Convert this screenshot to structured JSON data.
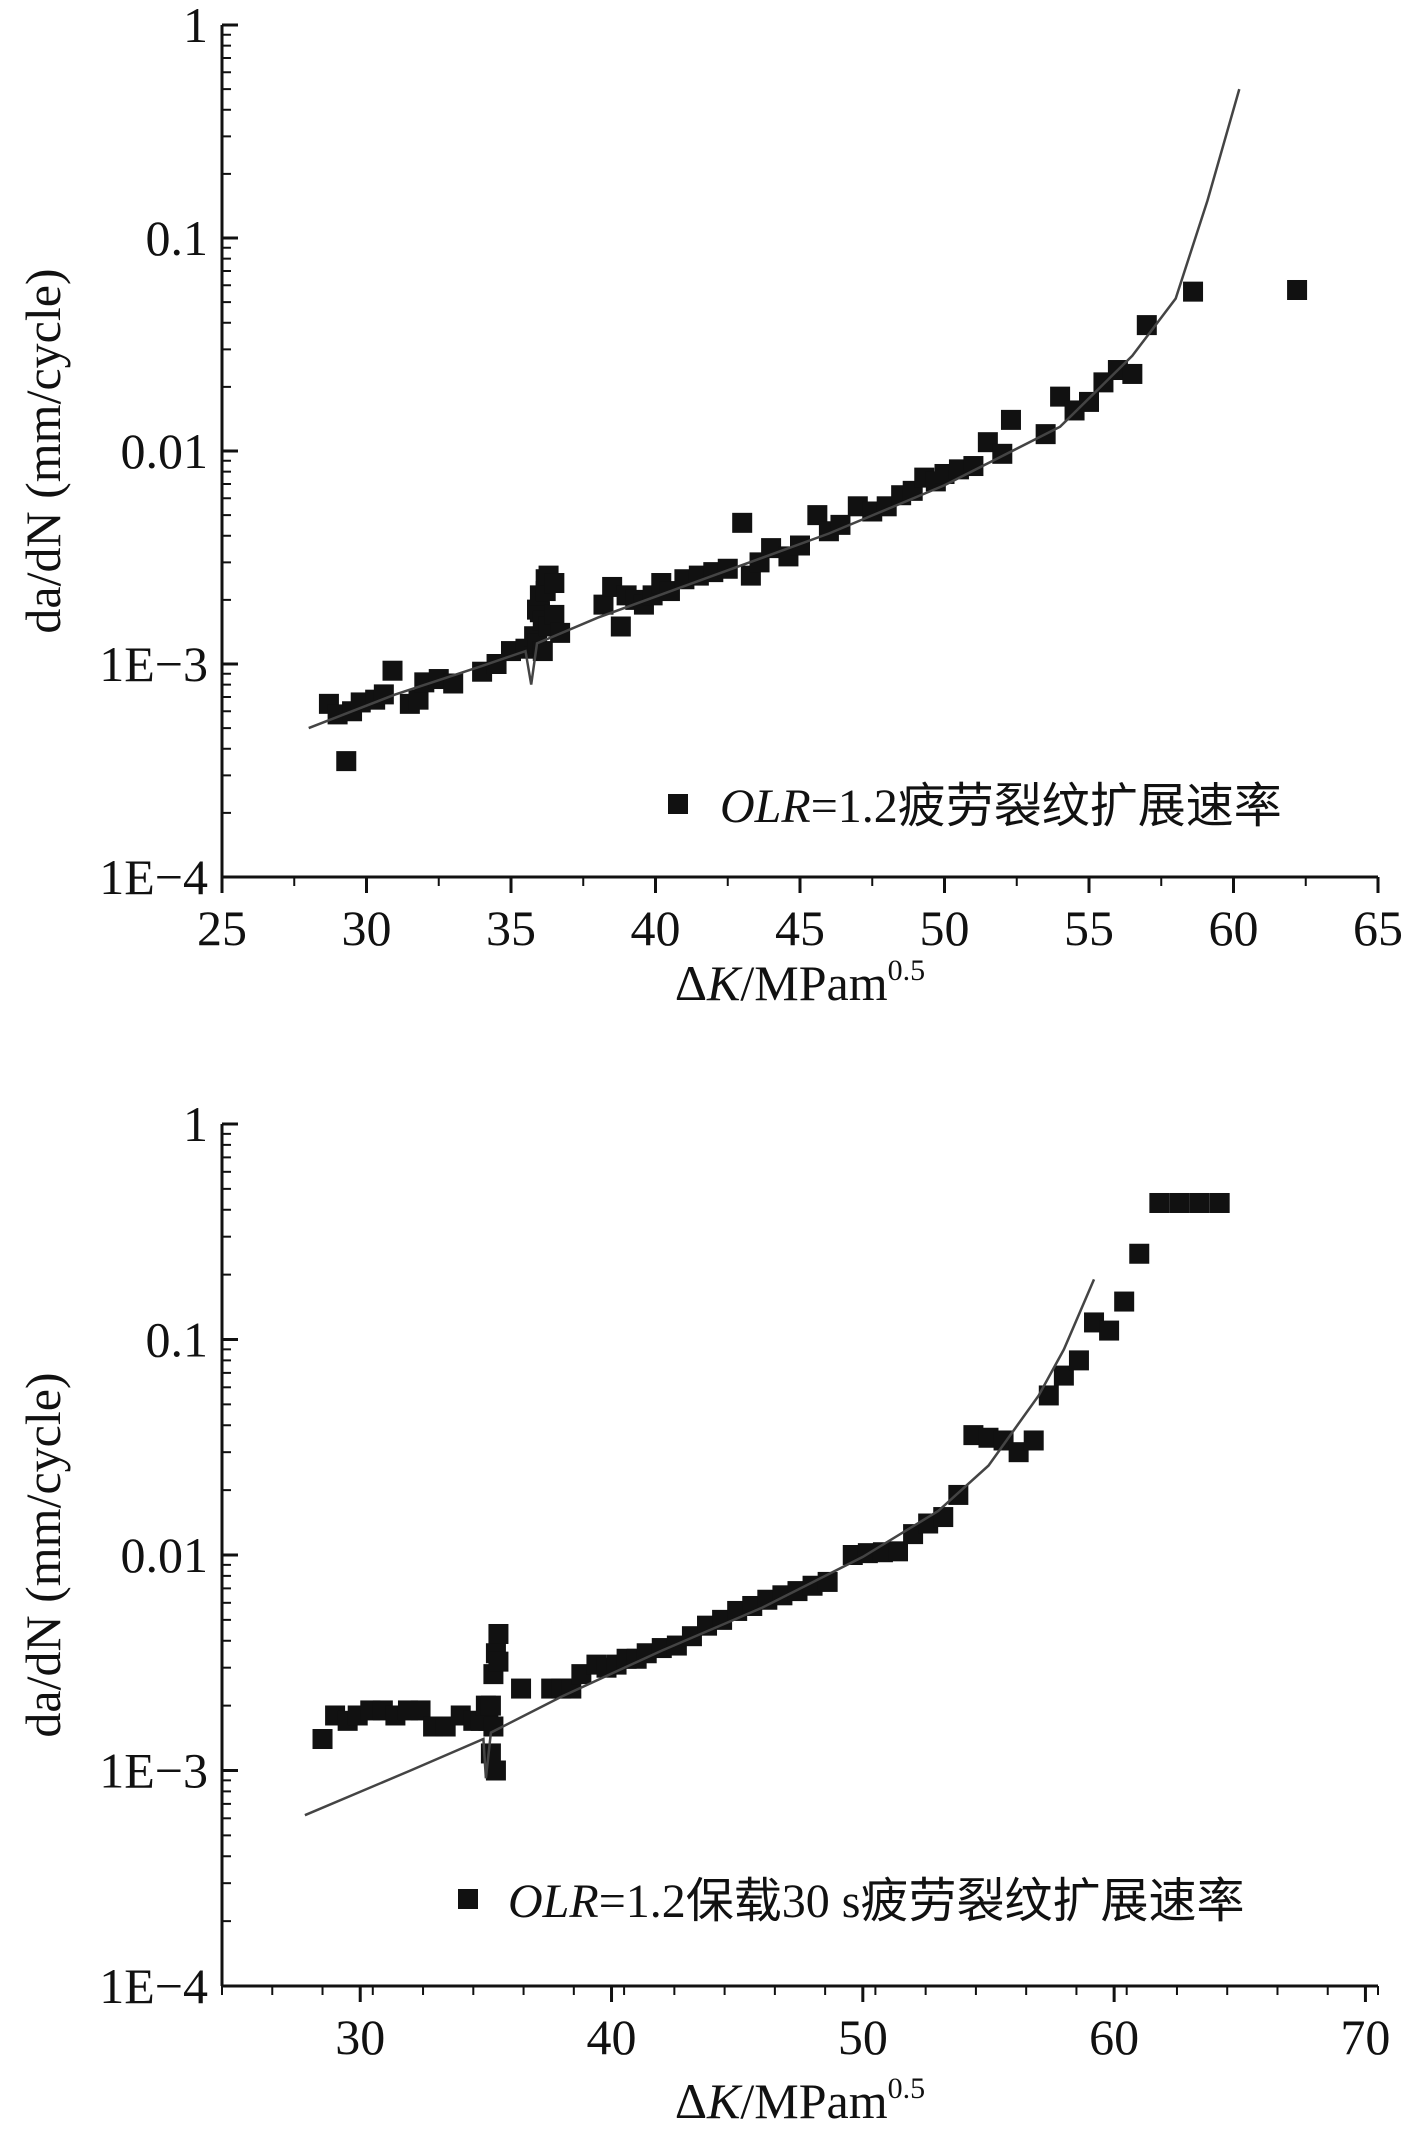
{
  "colors": {
    "axis": "#111111",
    "marker": "#111111",
    "fit_line": "#444444",
    "background": "#ffffff"
  },
  "chart_data": [
    {
      "type": "scatter",
      "xlabel_symbol": "ΔK",
      "xlabel_unit": "/MPam",
      "xlabel_exponent": "0.5",
      "ylabel": "da/dN (mm/cycle)",
      "xlim": [
        25,
        65
      ],
      "ylim": [
        0.0001,
        1
      ],
      "yscale": "log",
      "xticks": [
        25,
        30,
        35,
        40,
        45,
        50,
        55,
        60,
        65
      ],
      "xtick_labels": [
        "25",
        "30",
        "35",
        "40",
        "45",
        "50",
        "55",
        "60",
        "65"
      ],
      "yticks": [
        0.0001,
        0.001,
        0.01,
        0.1,
        1
      ],
      "ytick_labels": [
        "1E−4",
        "1E−3",
        "0.01",
        "0.1",
        "1"
      ],
      "legend": {
        "position": "bottom-right",
        "italic_part": "OLR",
        "rest": "=1.2疲劳裂纹扩展速率"
      },
      "series": [
        {
          "marker": "square",
          "x": [
            28.7,
            29.0,
            29.3,
            29.5,
            29.8,
            30.3,
            30.6,
            30.9,
            31.5,
            31.8,
            32.0,
            32.5,
            33.0,
            34.0,
            34.5,
            35.0,
            35.5,
            35.8,
            35.9,
            35.9,
            36.0,
            36.0,
            36.1,
            36.1,
            36.2,
            36.2,
            36.3,
            36.3,
            36.5,
            36.5,
            36.7,
            38.2,
            38.5,
            38.8,
            39.0,
            39.3,
            39.6,
            39.9,
            40.2,
            40.5,
            41.0,
            41.5,
            42.0,
            42.5,
            43.0,
            43.3,
            43.6,
            44.0,
            44.6,
            45.0,
            45.6,
            46.0,
            46.4,
            47.0,
            47.5,
            48.0,
            48.5,
            48.9,
            49.3,
            49.7,
            50.0,
            50.5,
            51.0,
            51.5,
            52.0,
            52.3,
            53.5,
            54.0,
            54.5,
            55.0,
            55.5,
            56.0,
            56.5,
            57.0,
            58.6,
            62.2
          ],
          "y": [
            0.00065,
            0.00058,
            0.00035,
            0.0006,
            0.00066,
            0.00068,
            0.00072,
            0.00093,
            0.00065,
            0.00068,
            0.00082,
            0.00085,
            0.00081,
            0.00092,
            0.001,
            0.00115,
            0.00118,
            0.00135,
            0.00125,
            0.0018,
            0.00175,
            0.0021,
            0.00115,
            0.0016,
            0.0025,
            0.0022,
            0.0015,
            0.0026,
            0.0017,
            0.0024,
            0.0014,
            0.0019,
            0.0023,
            0.0015,
            0.0021,
            0.002,
            0.0019,
            0.0021,
            0.0024,
            0.0022,
            0.0025,
            0.0026,
            0.0027,
            0.0028,
            0.0046,
            0.0026,
            0.003,
            0.0035,
            0.0032,
            0.0036,
            0.005,
            0.0042,
            0.0045,
            0.0055,
            0.0052,
            0.0055,
            0.0062,
            0.0065,
            0.0075,
            0.0072,
            0.0078,
            0.0082,
            0.0085,
            0.011,
            0.0097,
            0.014,
            0.012,
            0.018,
            0.0155,
            0.017,
            0.021,
            0.024,
            0.023,
            0.039,
            0.056,
            0.057
          ]
        },
        {
          "type": "line",
          "x": [
            28.0,
            31.0,
            34.0,
            35.5,
            35.7,
            35.9,
            38.0,
            42.0,
            46.0,
            50.0,
            54.0,
            56.5,
            58.0,
            59.1,
            60.2
          ],
          "y": [
            0.0005,
            0.00072,
            0.00098,
            0.00115,
            0.0008,
            0.00125,
            0.00165,
            0.0026,
            0.0041,
            0.0069,
            0.013,
            0.028,
            0.052,
            0.15,
            0.5
          ]
        }
      ]
    },
    {
      "type": "scatter",
      "xlabel_symbol": "ΔK",
      "xlabel_unit": "/MPam",
      "xlabel_exponent": "0.5",
      "ylabel": "da/dN (mm/cycle)",
      "xlim": [
        24.5,
        70.5
      ],
      "ylim": [
        0.0001,
        1
      ],
      "yscale": "log",
      "xticks": [
        30,
        40,
        50,
        60,
        70
      ],
      "xtick_labels": [
        "30",
        "40",
        "50",
        "60",
        "70"
      ],
      "yticks": [
        0.0001,
        0.001,
        0.01,
        0.1,
        1
      ],
      "ytick_labels": [
        "1E−4",
        "1E−3",
        "0.01",
        "0.1",
        "1"
      ],
      "legend": {
        "position": "bottom",
        "italic_part": "OLR",
        "rest": "=1.2保载30 s疲劳裂纹扩展速率"
      },
      "series": [
        {
          "marker": "square",
          "x": [
            28.5,
            29.0,
            29.5,
            29.9,
            30.4,
            30.9,
            31.4,
            31.9,
            32.4,
            32.9,
            33.4,
            34.0,
            34.5,
            34.8,
            35.0,
            35.1,
            35.2,
            35.2,
            35.3,
            35.3,
            35.4,
            35.4,
            35.5,
            35.5,
            36.4,
            37.6,
            38.0,
            38.4,
            38.8,
            39.4,
            39.8,
            40.2,
            40.6,
            41.0,
            41.4,
            42.0,
            42.6,
            43.2,
            43.8,
            44.4,
            45.0,
            45.6,
            46.2,
            46.8,
            47.4,
            48.0,
            48.6,
            49.6,
            50.2,
            50.8,
            51.4,
            52.0,
            52.6,
            53.2,
            53.8,
            54.4,
            55.0,
            55.6,
            56.2,
            56.8,
            57.4,
            58.0,
            58.6,
            59.2,
            59.8,
            60.4,
            61.0,
            61.8,
            62.6,
            63.4,
            64.2
          ],
          "y": [
            0.0014,
            0.0018,
            0.0017,
            0.0018,
            0.0019,
            0.0019,
            0.0018,
            0.0019,
            0.0019,
            0.0016,
            0.0016,
            0.0018,
            0.0017,
            0.0017,
            0.002,
            0.0017,
            0.0012,
            0.002,
            0.0016,
            0.0028,
            0.001,
            0.0035,
            0.0032,
            0.0043,
            0.0024,
            0.0024,
            0.0024,
            0.0024,
            0.0028,
            0.0031,
            0.003,
            0.0031,
            0.0033,
            0.0033,
            0.0035,
            0.0037,
            0.0038,
            0.0042,
            0.0047,
            0.005,
            0.0055,
            0.0058,
            0.0062,
            0.0065,
            0.0068,
            0.0072,
            0.0075,
            0.01,
            0.0102,
            0.0103,
            0.0104,
            0.0125,
            0.014,
            0.015,
            0.019,
            0.036,
            0.035,
            0.034,
            0.03,
            0.034,
            0.055,
            0.068,
            0.08,
            0.12,
            0.11,
            0.15,
            0.25,
            0.43,
            0.43,
            0.43,
            0.43
          ]
        },
        {
          "type": "line",
          "x": [
            27.8,
            32.0,
            34.9,
            35.0,
            35.2,
            38.0,
            42.0,
            46.0,
            50.0,
            53.0,
            55.0,
            57.0,
            58.0,
            59.2
          ],
          "y": [
            0.00062,
            0.001,
            0.0014,
            0.00092,
            0.0015,
            0.0022,
            0.0036,
            0.0057,
            0.0098,
            0.016,
            0.026,
            0.055,
            0.09,
            0.19
          ]
        }
      ]
    }
  ]
}
